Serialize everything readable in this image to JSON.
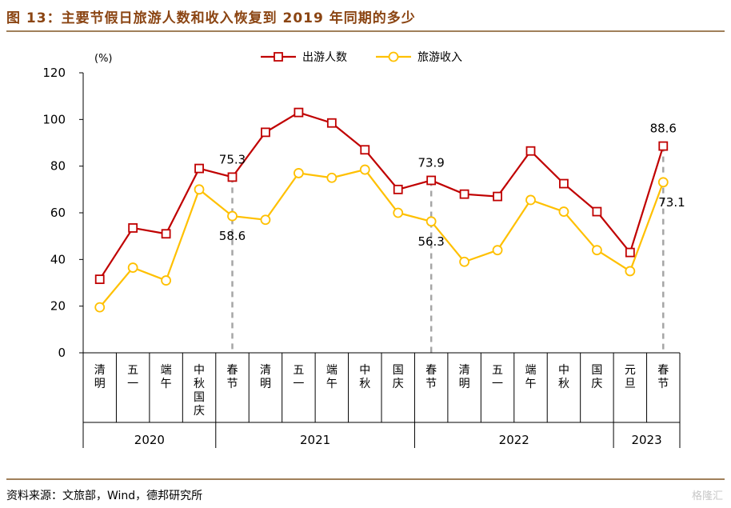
{
  "figure_title": "图 13：主要节假日旅游人数和收入恢复到 2019 年同期的多少",
  "source": "资料来源：文旅部，Wind，德邦研究所",
  "watermark": "格隆汇",
  "colors": {
    "series_1": "#C00000",
    "series_2": "#FFC000",
    "title": "#8B4513",
    "dashed": "#a6a6a6"
  },
  "chart_data": {
    "type": "line",
    "y_unit_label": "(%)",
    "ylim": [
      0,
      120
    ],
    "yticks": [
      0,
      20,
      40,
      60,
      80,
      100,
      120
    ],
    "grid": false,
    "legend_position": "top-center",
    "categories": [
      "清明",
      "五一",
      "端午",
      "中秋国庆",
      "春节",
      "清明",
      "五一",
      "端午",
      "中秋",
      "国庆",
      "春节",
      "清明",
      "五一",
      "端午",
      "中秋",
      "国庆",
      "元旦",
      "春节"
    ],
    "year_groups": [
      {
        "label": "2020",
        "start": 0,
        "end": 3
      },
      {
        "label": "2021",
        "start": 4,
        "end": 9
      },
      {
        "label": "2022",
        "start": 10,
        "end": 15
      },
      {
        "label": "2023",
        "start": 16,
        "end": 17
      }
    ],
    "series": [
      {
        "name": "出游人数",
        "marker": "square",
        "values": [
          31.5,
          53.5,
          51,
          79,
          75.3,
          94.5,
          103,
          98.5,
          87,
          70,
          73.9,
          68,
          67,
          86.5,
          72.5,
          60.5,
          43,
          88.6
        ]
      },
      {
        "name": "旅游收入",
        "marker": "circle",
        "values": [
          19.5,
          36.5,
          31,
          70,
          58.6,
          57,
          77,
          75,
          78.5,
          60,
          56.3,
          39,
          44,
          65.5,
          60.5,
          44,
          35,
          73.1
        ]
      }
    ],
    "annotations": [
      {
        "index": 4,
        "series": 0,
        "text": "75.3",
        "pos": "above"
      },
      {
        "index": 4,
        "series": 1,
        "text": "58.6",
        "pos": "below"
      },
      {
        "index": 10,
        "series": 0,
        "text": "73.9",
        "pos": "above"
      },
      {
        "index": 10,
        "series": 1,
        "text": "56.3",
        "pos": "below"
      },
      {
        "index": 17,
        "series": 0,
        "text": "88.6",
        "pos": "above"
      },
      {
        "index": 17,
        "series": 1,
        "text": "73.1",
        "pos": "below-right"
      }
    ],
    "dashed_reference_indices": [
      4,
      10,
      17
    ]
  }
}
